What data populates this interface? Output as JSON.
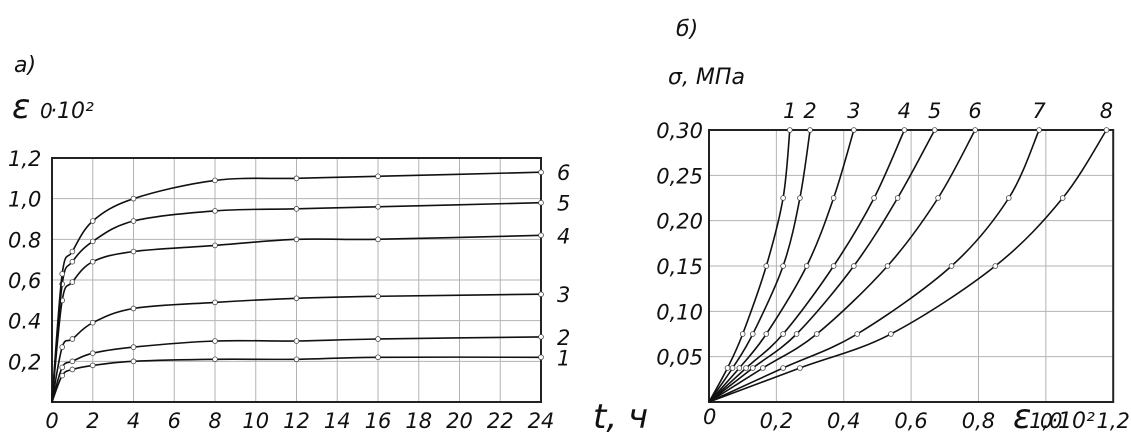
{
  "chart_data": [
    {
      "type": "line",
      "panel_label": "а)",
      "ylabel_symbol": "ε",
      "ylabel_sub": "0",
      "ylabel_factor": "·10²",
      "xlabel": "t, ч",
      "xlim": [
        0,
        24
      ],
      "ylim": [
        0,
        1.2
      ],
      "x_ticks": [
        "0",
        "2",
        "4",
        "6",
        "8",
        "10",
        "12",
        "14",
        "16",
        "18",
        "20",
        "22",
        "24"
      ],
      "y_ticks": [
        "0",
        "0,2",
        "0.4",
        "0,6",
        "0.8",
        "1,0",
        "1,2"
      ],
      "grid": true,
      "x": [
        0,
        0.5,
        1,
        2,
        4,
        8,
        12,
        16,
        24
      ],
      "series": [
        {
          "name": "1",
          "values": [
            0,
            0.13,
            0.16,
            0.18,
            0.2,
            0.21,
            0.21,
            0.22,
            0.22
          ]
        },
        {
          "name": "2",
          "values": [
            0,
            0.17,
            0.2,
            0.24,
            0.27,
            0.3,
            0.3,
            0.31,
            0.32
          ]
        },
        {
          "name": "3",
          "values": [
            0,
            0.27,
            0.31,
            0.39,
            0.46,
            0.49,
            0.51,
            0.52,
            0.53
          ]
        },
        {
          "name": "4",
          "values": [
            0,
            0.5,
            0.59,
            0.69,
            0.74,
            0.77,
            0.8,
            0.8,
            0.82
          ]
        },
        {
          "name": "5",
          "values": [
            0,
            0.58,
            0.69,
            0.79,
            0.89,
            0.94,
            0.95,
            0.96,
            0.98
          ]
        },
        {
          "name": "6",
          "values": [
            0,
            0.63,
            0.74,
            0.89,
            1.0,
            1.09,
            1.1,
            1.11,
            1.13
          ]
        }
      ]
    },
    {
      "type": "line",
      "panel_label": "б)",
      "ylabel": "σ, МПа",
      "xlabel_symbol": "ε",
      "xlabel_sub": "0",
      "xlabel_factor": "·10²",
      "origin_label": "0",
      "xlim": [
        0,
        1.2
      ],
      "ylim": [
        0,
        0.3
      ],
      "x_ticks": [
        "0,2",
        "0,4",
        "0,6",
        "0,8",
        "1,0",
        "1,2"
      ],
      "y_ticks": [
        "0,05",
        "0,10",
        "0,15",
        "0,20",
        "0,25",
        "0,30"
      ],
      "grid": true,
      "y": [
        0,
        0.0375,
        0.075,
        0.15,
        0.225,
        0.3
      ],
      "series": [
        {
          "name": "1",
          "x": [
            0,
            0.055,
            0.1,
            0.17,
            0.22,
            0.24
          ]
        },
        {
          "name": "2",
          "x": [
            0,
            0.07,
            0.13,
            0.22,
            0.27,
            0.3
          ]
        },
        {
          "name": "3",
          "x": [
            0,
            0.09,
            0.17,
            0.29,
            0.37,
            0.43
          ]
        },
        {
          "name": "4",
          "x": [
            0,
            0.11,
            0.22,
            0.37,
            0.49,
            0.58
          ]
        },
        {
          "name": "5",
          "x": [
            0,
            0.13,
            0.26,
            0.43,
            0.56,
            0.67
          ]
        },
        {
          "name": "6",
          "x": [
            0,
            0.16,
            0.32,
            0.53,
            0.68,
            0.79
          ]
        },
        {
          "name": "7",
          "x": [
            0,
            0.22,
            0.44,
            0.72,
            0.89,
            0.98
          ]
        },
        {
          "name": "8",
          "x": [
            0,
            0.27,
            0.54,
            0.85,
            1.05,
            1.18
          ]
        }
      ]
    }
  ]
}
